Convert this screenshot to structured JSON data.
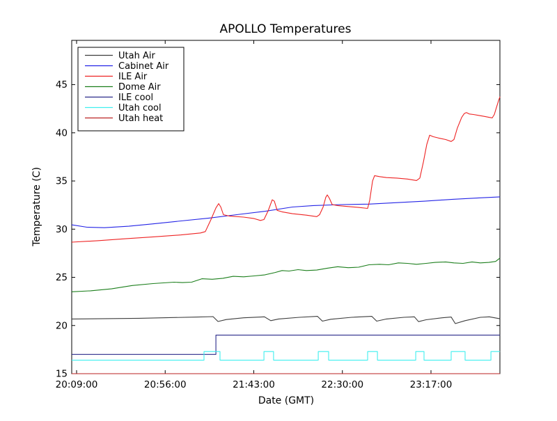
{
  "figure": {
    "title": "APOLLO Temperatures",
    "background_color": "#ffffff",
    "spine_color": "#000000"
  },
  "chart_data": {
    "type": "line",
    "title": "APOLLO Temperatures",
    "xlabel": "Date (GMT)",
    "ylabel": "Temperature (C)",
    "x_unit": "minutes after 20:00 GMT",
    "xlim": [
      6.4,
      233.6
    ],
    "ylim": [
      15,
      49.6
    ],
    "grid": false,
    "legend_position": "upper left",
    "x_ticks": [
      {
        "value": 9,
        "label": "20:09:00"
      },
      {
        "value": 56,
        "label": "20:56:00"
      },
      {
        "value": 103,
        "label": "21:43:00"
      },
      {
        "value": 150,
        "label": "22:30:00"
      },
      {
        "value": 197,
        "label": "23:17:00"
      }
    ],
    "y_ticks": [
      15,
      20,
      25,
      30,
      35,
      40,
      45
    ],
    "series": [
      {
        "name": "Utah Air",
        "color": "#3c3c3c",
        "points": [
          [
            6.4,
            20.68
          ],
          [
            42.2,
            20.75
          ],
          [
            71.8,
            20.87
          ],
          [
            81.4,
            20.92
          ],
          [
            84,
            20.42
          ],
          [
            88.4,
            20.62
          ],
          [
            97.6,
            20.8
          ],
          [
            108.7,
            20.9
          ],
          [
            112,
            20.5
          ],
          [
            116.1,
            20.68
          ],
          [
            127.2,
            20.85
          ],
          [
            136.8,
            20.95
          ],
          [
            139.4,
            20.45
          ],
          [
            143.8,
            20.65
          ],
          [
            154.9,
            20.85
          ],
          [
            165.6,
            20.95
          ],
          [
            168.2,
            20.45
          ],
          [
            173.4,
            20.68
          ],
          [
            182.6,
            20.85
          ],
          [
            188.2,
            20.9
          ],
          [
            190.4,
            20.4
          ],
          [
            194.4,
            20.6
          ],
          [
            202.9,
            20.8
          ],
          [
            207.7,
            20.88
          ],
          [
            209.9,
            20.2
          ],
          [
            215.1,
            20.5
          ],
          [
            223.2,
            20.85
          ],
          [
            228,
            20.9
          ],
          [
            233.6,
            20.7
          ]
        ]
      },
      {
        "name": "Cabinet Air",
        "color": "#2323e6",
        "points": [
          [
            6.4,
            30.45
          ],
          [
            14.5,
            30.2
          ],
          [
            23.8,
            30.15
          ],
          [
            36.7,
            30.3
          ],
          [
            49.6,
            30.55
          ],
          [
            64.4,
            30.85
          ],
          [
            79.2,
            31.15
          ],
          [
            93.9,
            31.5
          ],
          [
            108.7,
            31.85
          ],
          [
            123.5,
            32.3
          ],
          [
            134.6,
            32.45
          ],
          [
            149.4,
            32.55
          ],
          [
            164.1,
            32.6
          ],
          [
            178.9,
            32.75
          ],
          [
            193.7,
            32.9
          ],
          [
            208.5,
            33.1
          ],
          [
            223.2,
            33.25
          ],
          [
            233.6,
            33.35
          ]
        ]
      },
      {
        "name": "ILE Air",
        "color": "#ee2222",
        "points": [
          [
            6.4,
            28.65
          ],
          [
            20.1,
            28.8
          ],
          [
            34.9,
            29.0
          ],
          [
            49.6,
            29.2
          ],
          [
            64.4,
            29.4
          ],
          [
            74.7,
            29.6
          ],
          [
            77.3,
            29.75
          ],
          [
            80.3,
            31.0
          ],
          [
            82.9,
            32.2
          ],
          [
            84.4,
            32.65
          ],
          [
            85.5,
            32.3
          ],
          [
            86.9,
            31.5
          ],
          [
            90.3,
            31.35
          ],
          [
            97.6,
            31.25
          ],
          [
            103.2,
            31.1
          ],
          [
            106.5,
            30.9
          ],
          [
            108.4,
            31.0
          ],
          [
            110.6,
            31.9
          ],
          [
            112.8,
            33.05
          ],
          [
            113.9,
            32.9
          ],
          [
            115.4,
            31.95
          ],
          [
            118.0,
            31.8
          ],
          [
            123.5,
            31.6
          ],
          [
            130.9,
            31.45
          ],
          [
            136.4,
            31.3
          ],
          [
            137.9,
            31.5
          ],
          [
            139.8,
            32.3
          ],
          [
            141.2,
            33.3
          ],
          [
            142.0,
            33.55
          ],
          [
            143.1,
            33.2
          ],
          [
            144.6,
            32.55
          ],
          [
            147.5,
            32.45
          ],
          [
            153.1,
            32.35
          ],
          [
            158.6,
            32.25
          ],
          [
            163.4,
            32.15
          ],
          [
            164.5,
            33.0
          ],
          [
            166.0,
            35.0
          ],
          [
            167.1,
            35.55
          ],
          [
            169.7,
            35.45
          ],
          [
            173.4,
            35.35
          ],
          [
            178.9,
            35.3
          ],
          [
            184.5,
            35.2
          ],
          [
            189.3,
            35.05
          ],
          [
            191.1,
            35.3
          ],
          [
            193.0,
            37.0
          ],
          [
            194.8,
            38.8
          ],
          [
            196.3,
            39.75
          ],
          [
            198.1,
            39.6
          ],
          [
            201.1,
            39.45
          ],
          [
            204.8,
            39.3
          ],
          [
            207.7,
            39.1
          ],
          [
            209.2,
            39.3
          ],
          [
            211.0,
            40.5
          ],
          [
            213.3,
            41.6
          ],
          [
            214.7,
            42.0
          ],
          [
            215.8,
            42.1
          ],
          [
            217.3,
            41.95
          ],
          [
            219.5,
            41.9
          ],
          [
            222.5,
            41.8
          ],
          [
            225.4,
            41.7
          ],
          [
            228.0,
            41.6
          ],
          [
            229.5,
            41.55
          ],
          [
            230.6,
            41.9
          ],
          [
            231.7,
            42.6
          ],
          [
            232.8,
            43.3
          ],
          [
            233.6,
            43.75
          ]
        ]
      },
      {
        "name": "Dome Air",
        "color": "#1b7e1b",
        "points": [
          [
            6.4,
            23.5
          ],
          [
            16.4,
            23.6
          ],
          [
            27.5,
            23.8
          ],
          [
            38.5,
            24.15
          ],
          [
            49.6,
            24.35
          ],
          [
            60.7,
            24.5
          ],
          [
            65.1,
            24.45
          ],
          [
            70.0,
            24.5
          ],
          [
            75.5,
            24.85
          ],
          [
            81.0,
            24.8
          ],
          [
            86.6,
            24.9
          ],
          [
            92.1,
            25.1
          ],
          [
            97.6,
            25.05
          ],
          [
            103.2,
            25.15
          ],
          [
            108.7,
            25.25
          ],
          [
            114.3,
            25.5
          ],
          [
            118.0,
            25.7
          ],
          [
            121.7,
            25.65
          ],
          [
            126.5,
            25.8
          ],
          [
            130.9,
            25.7
          ],
          [
            136.4,
            25.75
          ],
          [
            142.0,
            25.95
          ],
          [
            147.5,
            26.1
          ],
          [
            153.1,
            26.0
          ],
          [
            158.6,
            26.05
          ],
          [
            164.1,
            26.3
          ],
          [
            169.7,
            26.35
          ],
          [
            174.5,
            26.3
          ],
          [
            179.7,
            26.5
          ],
          [
            184.5,
            26.45
          ],
          [
            189.3,
            26.35
          ],
          [
            194.4,
            26.45
          ],
          [
            199.2,
            26.55
          ],
          [
            204.8,
            26.6
          ],
          [
            209.2,
            26.5
          ],
          [
            214.0,
            26.45
          ],
          [
            218.8,
            26.6
          ],
          [
            223.2,
            26.5
          ],
          [
            227.7,
            26.55
          ],
          [
            231.3,
            26.65
          ],
          [
            233.6,
            27.0
          ]
        ]
      },
      {
        "name": "ILE cool",
        "color": "#2a2a8a",
        "points": [
          [
            6.4,
            17.0
          ],
          [
            82.9,
            17.0
          ],
          [
            82.9,
            19.0
          ],
          [
            233.6,
            19.0
          ]
        ]
      },
      {
        "name": "Utah cool",
        "color": "#3fefef",
        "points": [
          [
            6.4,
            16.4
          ],
          [
            76.6,
            16.4
          ],
          [
            76.6,
            17.3
          ],
          [
            85.1,
            17.3
          ],
          [
            85.1,
            16.4
          ],
          [
            108.4,
            16.4
          ],
          [
            108.4,
            17.3
          ],
          [
            113.5,
            17.3
          ],
          [
            113.5,
            16.4
          ],
          [
            137.2,
            16.4
          ],
          [
            137.2,
            17.3
          ],
          [
            142.7,
            17.3
          ],
          [
            142.7,
            16.4
          ],
          [
            163.4,
            16.4
          ],
          [
            163.4,
            17.3
          ],
          [
            168.6,
            17.3
          ],
          [
            168.6,
            16.4
          ],
          [
            188.9,
            16.4
          ],
          [
            188.9,
            17.3
          ],
          [
            193.3,
            17.3
          ],
          [
            193.3,
            16.4
          ],
          [
            207.7,
            16.4
          ],
          [
            207.7,
            17.3
          ],
          [
            215.1,
            17.3
          ],
          [
            215.1,
            16.4
          ],
          [
            228.8,
            16.4
          ],
          [
            228.8,
            17.3
          ],
          [
            233.6,
            17.3
          ]
        ]
      },
      {
        "name": "Utah heat",
        "color": "#bb2222",
        "points": [
          [
            6.4,
            15.0
          ],
          [
            233.6,
            15.0
          ]
        ]
      }
    ]
  }
}
